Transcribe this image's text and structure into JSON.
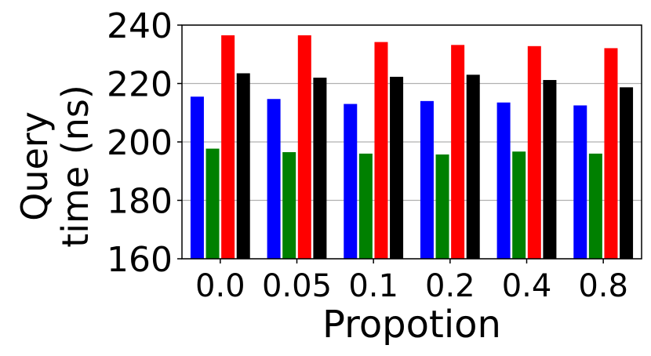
{
  "chart_data": {
    "type": "bar",
    "title": "",
    "xlabel": "Propotion",
    "ylabel_lines": [
      "Query",
      "time (ns)"
    ],
    "ylim": [
      160,
      240
    ],
    "yticks": [
      160,
      180,
      200,
      220,
      240
    ],
    "grid": "horizontal",
    "legend": "none",
    "categories": [
      "0.0",
      "0.05",
      "0.1",
      "0.2",
      "0.4",
      "0.8"
    ],
    "series": [
      {
        "color": "#0000ff",
        "values": [
          215.5,
          214.7,
          213.0,
          214.0,
          213.5,
          212.5
        ]
      },
      {
        "color": "#008000",
        "values": [
          197.7,
          196.5,
          196.0,
          195.7,
          196.7,
          196.0
        ]
      },
      {
        "color": "#ff0000",
        "values": [
          236.5,
          236.5,
          234.2,
          233.2,
          232.8,
          232.1
        ]
      },
      {
        "color": "#000000",
        "values": [
          223.5,
          222.0,
          222.3,
          223.0,
          221.2,
          218.7
        ]
      }
    ]
  }
}
